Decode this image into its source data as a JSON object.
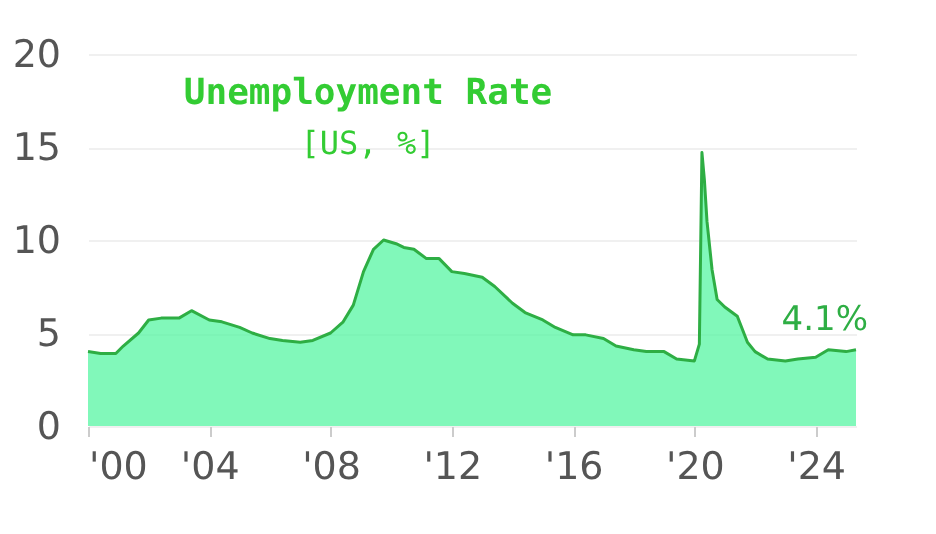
{
  "chart_data": {
    "type": "area",
    "title": "Unemployment Rate",
    "subtitle": "[US, %]",
    "x": [
      "2000-01",
      "2000-06",
      "2000-12",
      "2001-03",
      "2001-09",
      "2002-01",
      "2002-06",
      "2003-01",
      "2003-06",
      "2004-01",
      "2004-06",
      "2005-01",
      "2005-06",
      "2006-01",
      "2006-06",
      "2007-01",
      "2007-06",
      "2008-01",
      "2008-06",
      "2008-10",
      "2009-02",
      "2009-06",
      "2009-10",
      "2010-03",
      "2010-06",
      "2010-10",
      "2011-03",
      "2011-08",
      "2012-01",
      "2012-06",
      "2013-01",
      "2013-06",
      "2014-01",
      "2014-06",
      "2015-01",
      "2015-06",
      "2016-01",
      "2016-06",
      "2017-01",
      "2017-06",
      "2018-01",
      "2018-06",
      "2019-01",
      "2019-06",
      "2020-01",
      "2020-03",
      "2020-04",
      "2020-05",
      "2020-06",
      "2020-08",
      "2020-10",
      "2021-01",
      "2021-06",
      "2021-10",
      "2022-01",
      "2022-06",
      "2023-01",
      "2023-06",
      "2024-01",
      "2024-06",
      "2025-01",
      "2025-05"
    ],
    "series": [
      {
        "color": "#4cf59c",
        "values": [
          4.0,
          3.9,
          3.9,
          4.3,
          5.0,
          5.7,
          5.8,
          5.8,
          6.2,
          5.7,
          5.6,
          5.3,
          5.0,
          4.7,
          4.6,
          4.5,
          4.6,
          5.0,
          5.6,
          6.5,
          8.3,
          9.5,
          10.0,
          9.8,
          9.6,
          9.5,
          9.0,
          9.0,
          8.3,
          8.2,
          8.0,
          7.5,
          6.6,
          6.1,
          5.7,
          5.3,
          4.9,
          4.9,
          4.7,
          4.3,
          4.1,
          4.0,
          4.0,
          3.6,
          3.5,
          4.4,
          14.7,
          13.2,
          11.0,
          8.4,
          6.8,
          6.4,
          5.9,
          4.5,
          4.0,
          3.6,
          3.5,
          3.6,
          3.7,
          4.1,
          4.0,
          4.1
        ]
      }
    ],
    "annotations": [
      {
        "text": "4.1%",
        "x": "2025-05",
        "y": 4.1
      }
    ],
    "xlim": [
      "2000-01",
      "2025-05"
    ],
    "xticks": [
      {
        "value": "2000",
        "label": "'00"
      },
      {
        "value": "2004",
        "label": "'04"
      },
      {
        "value": "2008",
        "label": "'08"
      },
      {
        "value": "2012",
        "label": "'12"
      },
      {
        "value": "2016",
        "label": "'16"
      },
      {
        "value": "2020",
        "label": "'20"
      },
      {
        "value": "2024",
        "label": "'24"
      }
    ],
    "ylim": [
      0,
      20
    ],
    "yticks": [
      0,
      5,
      10,
      15,
      20
    ],
    "grid": "y"
  }
}
